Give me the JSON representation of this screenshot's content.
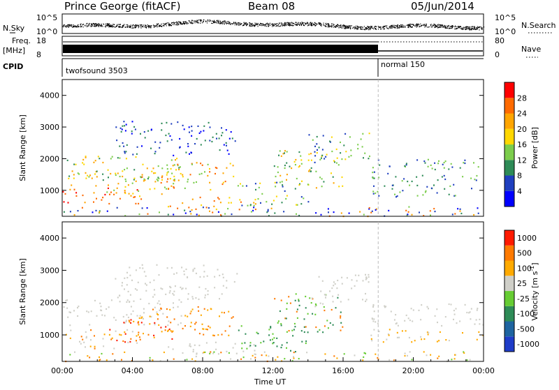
{
  "header": {
    "station": "Prince George (fitACF)",
    "beam": "Beam 08",
    "date": "05/Jun/2014"
  },
  "strip": {
    "nsky_label": "N.Sky",
    "nsearch_label": "N.Search",
    "freq_label": "Freq.",
    "freq_unit": "[MHz]",
    "nave_label": "Nave",
    "cpid_label": "CPID",
    "left_ticks_top": [
      "10^5",
      "10^0"
    ],
    "right_ticks_top": [
      "10^5",
      "10^0"
    ],
    "left_ticks_freq": [
      "18",
      "8"
    ],
    "right_ticks_nave": [
      "80",
      "0"
    ],
    "cpid_segments": [
      {
        "label": "twofsound 3503",
        "start_hour": 0
      },
      {
        "label": "normal 150",
        "start_hour": 18
      }
    ]
  },
  "chart_data": [
    {
      "type": "heatmap",
      "name": "power",
      "xlabel": "",
      "ylabel": "Slant Range [km]",
      "x_range_hours": [
        0,
        24
      ],
      "ylim": [
        180,
        4500
      ],
      "y_ticks": [
        1000,
        2000,
        3000,
        4000
      ],
      "colorbar": {
        "label": "Power [dB]",
        "ticks": [
          4,
          8,
          12,
          16,
          20,
          24,
          28
        ],
        "colors": [
          "#0000ff",
          "#1f3fbf",
          "#2e8b57",
          "#7ccd4c",
          "#ffd700",
          "#ffa500",
          "#ff6a00",
          "#ff0000"
        ]
      }
    },
    {
      "type": "heatmap",
      "name": "velocity",
      "xlabel": "Time UT",
      "ylabel": "Slant Range [km]",
      "x_ticks": [
        "00:00",
        "04:00",
        "08:00",
        "12:00",
        "16:00",
        "20:00",
        "00:00"
      ],
      "ylim": [
        180,
        4500
      ],
      "y_ticks": [
        1000,
        2000,
        3000,
        4000
      ],
      "colorbar": {
        "label": "Velocity [m s",
        "label_sup": "-1",
        "label_end": "]",
        "ticks": [
          "1000",
          "500",
          "100",
          "25",
          "-25",
          "-100",
          "-500",
          "-1000"
        ],
        "colors": [
          "#1e3cc8",
          "#1e64a0",
          "#2e8b57",
          "#66cc33",
          "#cfcfc8",
          "#ffaa00",
          "#ff7a00",
          "#ff1a00"
        ]
      }
    }
  ]
}
